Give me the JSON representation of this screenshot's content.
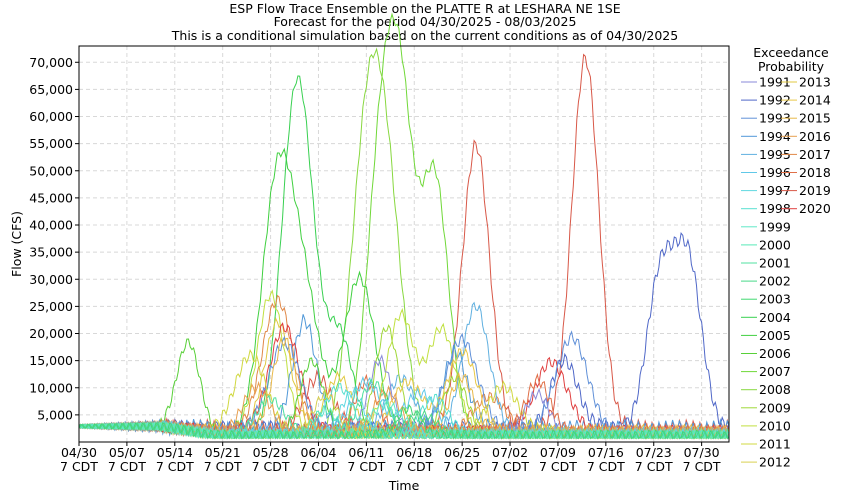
{
  "chart_data": {
    "type": "line",
    "title": "ESP Flow Trace Ensemble on the PLATTE R at LESHARA NE 1SE",
    "subtitle": "Forecast for the period 04/30/2025 - 08/03/2025",
    "subtitle2": "This is a conditional simulation based on the current conditions as of 04/30/2025",
    "xlabel": "Time",
    "ylabel": "Flow (CFS)",
    "ylim": [
      0,
      73000
    ],
    "xlim": [
      "2025-04-30",
      "2025-08-03"
    ],
    "grid": true,
    "y_ticks": [
      5000,
      10000,
      15000,
      20000,
      25000,
      30000,
      35000,
      40000,
      45000,
      50000,
      55000,
      60000,
      65000,
      70000
    ],
    "y_tick_labels": [
      "5,000",
      "10,000",
      "15,000",
      "20,000",
      "25,000",
      "30,000",
      "35,000",
      "40,000",
      "45,000",
      "50,000",
      "55,000",
      "60,000",
      "65,000",
      "70,000"
    ],
    "x_ticks": [
      {
        "line1": "04/30",
        "line2": "7 CDT"
      },
      {
        "line1": "05/07",
        "line2": "7 CDT"
      },
      {
        "line1": "05/14",
        "line2": "7 CDT"
      },
      {
        "line1": "05/21",
        "line2": "7 CDT"
      },
      {
        "line1": "05/28",
        "line2": "7 CDT"
      },
      {
        "line1": "06/04",
        "line2": "7 CDT"
      },
      {
        "line1": "06/11",
        "line2": "7 CDT"
      },
      {
        "line1": "06/18",
        "line2": "7 CDT"
      },
      {
        "line1": "06/25",
        "line2": "7 CDT"
      },
      {
        "line1": "07/02",
        "line2": "7 CDT"
      },
      {
        "line1": "07/09",
        "line2": "7 CDT"
      },
      {
        "line1": "07/16",
        "line2": "7 CDT"
      },
      {
        "line1": "07/23",
        "line2": "7 CDT"
      },
      {
        "line1": "07/30",
        "line2": "7 CDT"
      }
    ],
    "legend": {
      "title_line1": "Exceedance",
      "title_line2": "Probability",
      "placement": "right"
    },
    "series": [
      {
        "name": "1991",
        "color": "#8a8ad8",
        "base": 1500,
        "peaks": [
          [
            44,
            15000
          ],
          [
            67,
            9000
          ]
        ]
      },
      {
        "name": "1992",
        "color": "#5068c8",
        "base": 2500,
        "peaks": [
          [
            85,
            30000
          ],
          [
            89,
            32500
          ],
          [
            71,
            15000
          ]
        ]
      },
      {
        "name": "1993",
        "color": "#6090d8",
        "base": 2000,
        "peaks": [
          [
            56,
            19000
          ],
          [
            72,
            19500
          ],
          [
            30,
            18500
          ]
        ]
      },
      {
        "name": "1994",
        "color": "#5098d8",
        "base": 2500,
        "peaks": [
          [
            33,
            22500
          ],
          [
            55,
            17000
          ]
        ]
      },
      {
        "name": "1995",
        "color": "#60b0e0",
        "base": 1800,
        "peaks": [
          [
            58,
            25000
          ],
          [
            47,
            12000
          ]
        ]
      },
      {
        "name": "1996",
        "color": "#60c8e8",
        "base": 1600,
        "peaks": [
          [
            42,
            11000
          ],
          [
            50,
            9000
          ]
        ]
      },
      {
        "name": "1997",
        "color": "#60d8e0",
        "base": 1400,
        "peaks": [
          [
            40,
            9000
          ]
        ]
      },
      {
        "name": "1998",
        "color": "#58e0d0",
        "base": 1500,
        "peaks": [
          [
            38,
            10000
          ],
          [
            52,
            8000
          ]
        ]
      },
      {
        "name": "1999",
        "color": "#60e8c8",
        "base": 1300,
        "peaks": [
          [
            45,
            7000
          ]
        ]
      },
      {
        "name": "2000",
        "color": "#58e8b8",
        "base": 1200,
        "peaks": [
          [
            36,
            6000
          ]
        ]
      },
      {
        "name": "2001",
        "color": "#50e0a0",
        "base": 1400,
        "peaks": [
          [
            43,
            11000
          ],
          [
            28,
            8000
          ]
        ]
      },
      {
        "name": "2002",
        "color": "#48d888",
        "base": 1100,
        "peaks": [
          [
            50,
            5000
          ]
        ]
      },
      {
        "name": "2003",
        "color": "#40d870",
        "base": 1300,
        "peaks": [
          [
            48,
            6000
          ]
        ]
      },
      {
        "name": "2004",
        "color": "#38d050",
        "base": 1200,
        "peaks": [
          [
            33,
            37000
          ],
          [
            31,
            40000
          ],
          [
            38,
            20000
          ]
        ]
      },
      {
        "name": "2005",
        "color": "#40d040",
        "base": 1500,
        "peaks": [
          [
            29,
            47500
          ],
          [
            41,
            30500
          ],
          [
            33,
            25000
          ]
        ]
      },
      {
        "name": "2006",
        "color": "#58d038",
        "base": 1300,
        "peaks": [
          [
            16,
            17500
          ],
          [
            34,
            15000
          ]
        ]
      },
      {
        "name": "2007",
        "color": "#70d838",
        "base": 1500,
        "peaks": [
          [
            47,
            57000
          ],
          [
            52,
            48500
          ],
          [
            44,
            47000
          ]
        ]
      },
      {
        "name": "2008",
        "color": "#88d840",
        "base": 1600,
        "peaks": [
          [
            42,
            50500
          ],
          [
            45,
            40000
          ]
        ]
      },
      {
        "name": "2009",
        "color": "#a0d838",
        "base": 1400,
        "peaks": [
          [
            45,
            21000
          ],
          [
            55,
            12000
          ]
        ]
      },
      {
        "name": "2010",
        "color": "#c0e040",
        "base": 1500,
        "peaks": [
          [
            28,
            27000
          ],
          [
            47,
            23500
          ],
          [
            53,
            21000
          ]
        ]
      },
      {
        "name": "2011",
        "color": "#d0d840",
        "base": 1800,
        "peaks": [
          [
            25,
            16000
          ],
          [
            62,
            10000
          ]
        ]
      },
      {
        "name": "2012",
        "color": "#d8d050",
        "base": 1200,
        "peaks": [
          [
            36,
            9000
          ]
        ]
      },
      {
        "name": "2013",
        "color": "#e0c840",
        "base": 1300,
        "peaks": [
          [
            29,
            22000
          ],
          [
            38,
            12000
          ]
        ]
      },
      {
        "name": "2014",
        "color": "#e8c848",
        "base": 1600,
        "peaks": [
          [
            56,
            16500
          ],
          [
            48,
            11000
          ]
        ]
      },
      {
        "name": "2015",
        "color": "#e8b848",
        "base": 2000,
        "peaks": [
          [
            30,
            19000
          ],
          [
            56,
            12000
          ]
        ]
      },
      {
        "name": "2016",
        "color": "#e8a050",
        "base": 1800,
        "peaks": [
          [
            26,
            10000
          ],
          [
            45,
            9000
          ]
        ]
      },
      {
        "name": "2017",
        "color": "#e08848",
        "base": 1800,
        "peaks": [
          [
            29,
            26000
          ],
          [
            60,
            8500
          ]
        ]
      },
      {
        "name": "2018",
        "color": "#e07048",
        "base": 2000,
        "peaks": [
          [
            42,
            11000
          ],
          [
            67,
            11500
          ]
        ]
      },
      {
        "name": "2019",
        "color": "#d85848",
        "base": 2500,
        "peaks": [
          [
            58,
            55000
          ],
          [
            74,
            70500
          ],
          [
            35,
            12000
          ]
        ]
      },
      {
        "name": "2020",
        "color": "#e04040",
        "base": 2000,
        "peaks": [
          [
            30,
            21000
          ],
          [
            69,
            15000
          ]
        ]
      }
    ]
  }
}
